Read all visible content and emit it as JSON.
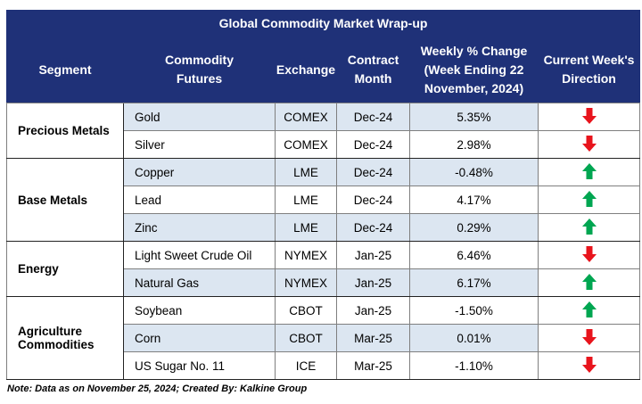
{
  "title": "Global Commodity Market Wrap-up",
  "headers": {
    "segment": "Segment",
    "commodity_line1": "Commodity",
    "commodity_line2": "Futures",
    "exchange": "Exchange",
    "contract_line1": "Contract",
    "contract_line2": "Month",
    "weekly_line1": "Weekly % Change",
    "weekly_line2": "(Week Ending  22",
    "weekly_line3": "November, 2024)",
    "direction_line1": "Current Week's",
    "direction_line2": "Direction"
  },
  "segments": [
    {
      "name_line1": "Precious Metals",
      "name_line2": "",
      "rows": [
        {
          "commodity": "Gold",
          "exchange": "COMEX",
          "month": "Dec-24",
          "change": "5.35%",
          "direction": "down",
          "shade": "blue"
        },
        {
          "commodity": "Silver",
          "exchange": "COMEX",
          "month": "Dec-24",
          "change": "2.98%",
          "direction": "down",
          "shade": "white"
        }
      ]
    },
    {
      "name_line1": "Base Metals",
      "name_line2": "",
      "rows": [
        {
          "commodity": "Copper",
          "exchange": "LME",
          "month": "Dec-24",
          "change": "-0.48%",
          "direction": "up",
          "shade": "blue"
        },
        {
          "commodity": "Lead",
          "exchange": "LME",
          "month": "Dec-24",
          "change": "4.17%",
          "direction": "up",
          "shade": "white"
        },
        {
          "commodity": "Zinc",
          "exchange": "LME",
          "month": "Dec-24",
          "change": "0.29%",
          "direction": "up",
          "shade": "blue"
        }
      ]
    },
    {
      "name_line1": "Energy",
      "name_line2": "",
      "rows": [
        {
          "commodity": "Light Sweet Crude Oil",
          "exchange": "NYMEX",
          "month": "Jan-25",
          "change": "6.46%",
          "direction": "down",
          "shade": "white"
        },
        {
          "commodity": "Natural Gas",
          "exchange": "NYMEX",
          "month": "Jan-25",
          "change": "6.17%",
          "direction": "up",
          "shade": "blue"
        }
      ]
    },
    {
      "name_line1": "Agriculture",
      "name_line2": "Commodities",
      "rows": [
        {
          "commodity": "Soybean",
          "exchange": "CBOT",
          "month": "Jan-25",
          "change": "-1.50%",
          "direction": "up",
          "shade": "white"
        },
        {
          "commodity": "Corn",
          "exchange": "CBOT",
          "month": "Mar-25",
          "change": "0.01%",
          "direction": "down",
          "shade": "blue"
        },
        {
          "commodity": "US Sugar No. 11",
          "exchange": "ICE",
          "month": "Mar-25",
          "change": "-1.10%",
          "direction": "down",
          "shade": "white"
        }
      ]
    }
  ],
  "icons": {
    "up": "green-up-arrow-icon",
    "down": "red-down-arrow-icon"
  },
  "colors": {
    "header_bg": "#1f3178",
    "row_shade": "#dce6f1",
    "up": "#00a651",
    "down": "#e8141c"
  },
  "note": "Note: Data as on November 25, 2024; Created By: Kalkine Group"
}
